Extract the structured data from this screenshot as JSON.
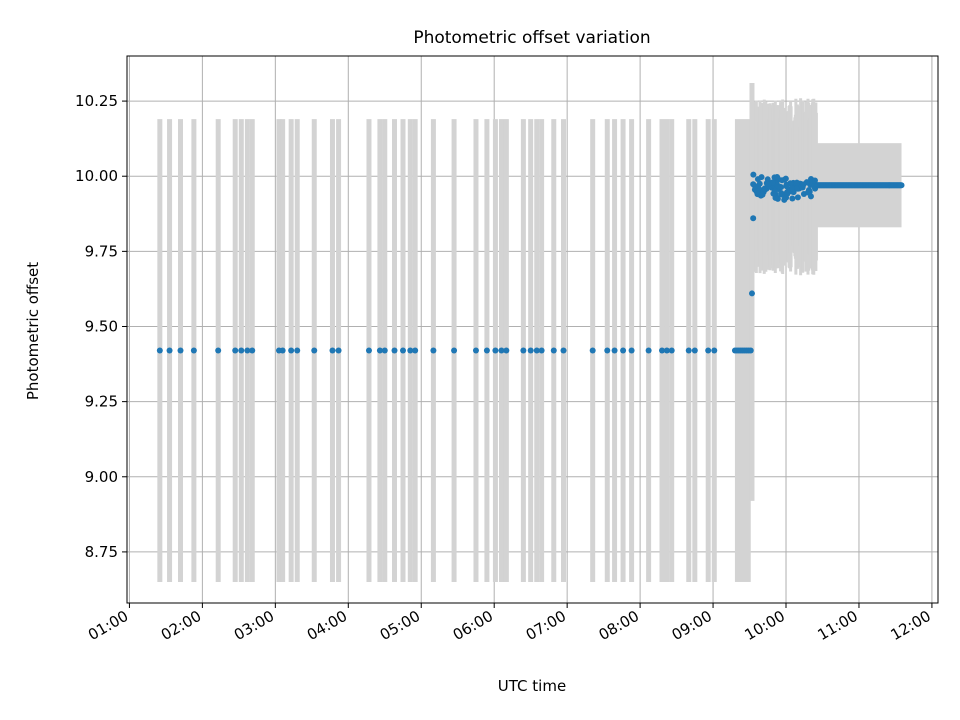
{
  "chart_data": {
    "type": "scatter",
    "title": "Photometric offset variation",
    "xlabel": "UTC time",
    "ylabel": "Photometric offset",
    "x_unit": "hours UTC",
    "xlim": [
      "00:58",
      "12:05"
    ],
    "ylim": [
      8.58,
      10.4
    ],
    "x_ticks": [
      "01:00",
      "02:00",
      "03:00",
      "04:00",
      "05:00",
      "06:00",
      "07:00",
      "08:00",
      "09:00",
      "10:00",
      "11:00",
      "12:00"
    ],
    "y_ticks": [
      "8.75",
      "9.00",
      "9.25",
      "9.50",
      "9.75",
      "10.00",
      "10.25"
    ],
    "grid": true,
    "legend": "none",
    "point_color": "#1f77b4",
    "errorbar_color": "#d3d3d3",
    "early_points": {
      "times": [
        "01:25",
        "01:33",
        "01:42",
        "01:53",
        "02:13",
        "02:27",
        "02:32",
        "02:37",
        "02:41",
        "03:03",
        "03:06",
        "03:13",
        "03:18",
        "03:32",
        "03:47",
        "03:52",
        "04:17",
        "04:26",
        "04:30",
        "04:38",
        "04:45",
        "04:51",
        "04:55",
        "05:10",
        "05:27",
        "05:45",
        "05:54",
        "06:01",
        "06:06",
        "06:10",
        "06:24",
        "06:30",
        "06:35",
        "06:39",
        "06:49",
        "06:57",
        "07:21",
        "07:33",
        "07:39",
        "07:46",
        "07:53",
        "08:07",
        "08:18",
        "08:22",
        "08:26",
        "08:40",
        "08:45",
        "08:56",
        "09:01"
      ],
      "value": 9.42,
      "err_low": 8.65,
      "err_high": 10.19
    },
    "dense_segment": {
      "time_start": "09:18",
      "time_end": "09:31",
      "value": 9.42,
      "err_low": 8.65,
      "err_high": 10.19
    },
    "transition_points": [
      {
        "time": "09:32",
        "value": 9.61
      },
      {
        "time": "09:33",
        "value": 9.86
      }
    ],
    "scatter_segment": {
      "time_start": "09:33",
      "time_end": "10:25",
      "center": 9.965,
      "spread": 0.03,
      "err_band_low": 9.72,
      "err_band_high": 10.21
    },
    "flat_segment": {
      "time_start": "10:25",
      "time_end": "11:35",
      "value": 9.97,
      "err_low": 9.83,
      "err_high": 10.11
    }
  }
}
